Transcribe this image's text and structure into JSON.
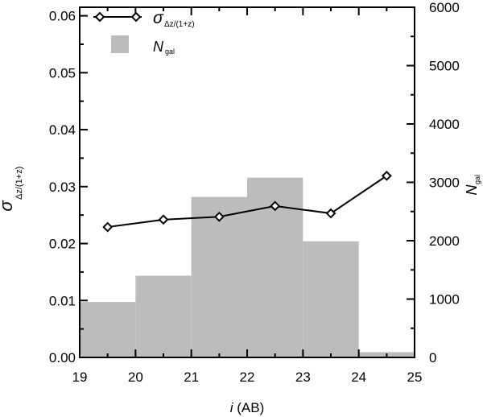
{
  "chart_data": {
    "type": "bar+line",
    "xlabel": {
      "italic": "i",
      "rest": " (AB)"
    },
    "ylabel_left": {
      "symbol": "σ",
      "subscript": "Δz/(1+z)"
    },
    "ylabel_right": {
      "symbol": "N",
      "subscript": "gal"
    },
    "xlim": [
      19,
      25
    ],
    "ylim_left": [
      0.0,
      0.0615
    ],
    "ylim_right": [
      0,
      6000
    ],
    "x_ticks": [
      "19",
      "20",
      "21",
      "22",
      "23",
      "24",
      "25"
    ],
    "y_left_ticks": [
      "0.00",
      "0.01",
      "0.02",
      "0.03",
      "0.04",
      "0.05",
      "0.06"
    ],
    "y_right_ticks": [
      "0",
      "1000",
      "2000",
      "3000",
      "4000",
      "5000",
      "6000"
    ],
    "legend": {
      "position": "top-left",
      "entries": [
        {
          "symbol": "σ",
          "subscript": "Δz/(1+z)",
          "style": "line-diamond"
        },
        {
          "symbol": "N",
          "subscript": "gal",
          "style": "filled-box"
        }
      ]
    },
    "histogram": {
      "name": "N_gal",
      "bin_edges": [
        19,
        20,
        21,
        22,
        23,
        24,
        25
      ],
      "counts": [
        950,
        1400,
        2750,
        3080,
        1990,
        90
      ],
      "color": "#bcbcbc"
    },
    "sigma_series": {
      "name": "sigma_dz/(1+z)",
      "x": [
        19.5,
        20.5,
        21.5,
        22.5,
        23.5,
        24.5
      ],
      "y": [
        0.0229,
        0.0242,
        0.0247,
        0.0266,
        0.0253,
        0.0319
      ],
      "color": "#000000"
    }
  }
}
